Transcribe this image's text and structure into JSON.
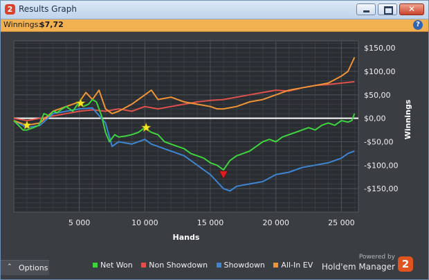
{
  "window": {
    "title": "Results Graph",
    "app_icon": "2",
    "close_glyph": "✕"
  },
  "infobar": {
    "winnings_label": "Winnings:",
    "winnings_value": "$7,72",
    "help_glyph": "?"
  },
  "chart_data": {
    "type": "line",
    "xlabel": "Hands",
    "ylabel": "Winnings",
    "xlim": [
      0,
      26300
    ],
    "ylim": [
      -200,
      165
    ],
    "x_ticks": [
      5000,
      10000,
      15000,
      20000,
      25000
    ],
    "x_tick_labels": [
      "5 000",
      "10 000",
      "15 000",
      "20 000",
      "25 000"
    ],
    "y_ticks": [
      150,
      100,
      50,
      0,
      -50,
      -100,
      -150
    ],
    "y_tick_labels": [
      "$150,00",
      "$100,00",
      "$50,00",
      "$0,00",
      "-$50,00",
      "-$100,00",
      "-$150,00"
    ],
    "grid": true,
    "legend_position": "bottom",
    "series": [
      {
        "name": "Net Won",
        "color": "#3ed43e",
        "x": [
          0,
          700,
          1000,
          1500,
          1900,
          2300,
          2700,
          3000,
          3300,
          3700,
          4000,
          4500,
          5000,
          5300,
          5700,
          6000,
          6300,
          6700,
          7000,
          7300,
          7700,
          8000,
          8500,
          9000,
          9500,
          10000,
          10500,
          11000,
          11500,
          12000,
          12500,
          13000,
          13500,
          14000,
          14500,
          15000,
          15500,
          16000,
          16500,
          17000,
          17500,
          18000,
          18500,
          19000,
          19500,
          20000,
          20500,
          21000,
          21500,
          22000,
          22500,
          23000,
          23500,
          24000,
          24500,
          25000,
          25500,
          25800,
          26000
        ],
        "y": [
          -5,
          -25,
          -25,
          -20,
          -15,
          10,
          5,
          15,
          12,
          20,
          25,
          15,
          35,
          25,
          30,
          40,
          35,
          5,
          -30,
          -50,
          -35,
          -40,
          -38,
          -35,
          -30,
          -20,
          -30,
          -35,
          -50,
          -55,
          -60,
          -65,
          -75,
          -80,
          -85,
          -95,
          -100,
          -110,
          -90,
          -80,
          -75,
          -70,
          -60,
          -50,
          -45,
          -50,
          -40,
          -35,
          -30,
          -25,
          -20,
          -25,
          -15,
          -10,
          -15,
          -5,
          -8,
          -5,
          10
        ]
      },
      {
        "name": "Non Showdown",
        "color": "#e0514b",
        "x": [
          0,
          1000,
          2000,
          3000,
          4000,
          5000,
          6000,
          7000,
          8000,
          9000,
          10000,
          11000,
          12000,
          13000,
          14000,
          15000,
          16000,
          17000,
          18000,
          19000,
          20000,
          21000,
          22000,
          23000,
          24000,
          25000,
          26000
        ],
        "y": [
          0,
          -5,
          0,
          5,
          10,
          15,
          18,
          15,
          20,
          15,
          25,
          20,
          25,
          30,
          35,
          38,
          40,
          45,
          50,
          55,
          60,
          58,
          65,
          70,
          72,
          75,
          78
        ]
      },
      {
        "name": "Showdown",
        "color": "#3d86d3",
        "x": [
          0,
          1000,
          2000,
          3000,
          4000,
          5000,
          6000,
          7000,
          7500,
          8000,
          9000,
          10000,
          10500,
          11000,
          12000,
          13000,
          14000,
          15000,
          15500,
          16000,
          16500,
          17000,
          18000,
          19000,
          20000,
          21000,
          22000,
          23000,
          24000,
          25000,
          25500,
          26000
        ],
        "y": [
          -5,
          -20,
          -15,
          10,
          15,
          20,
          22,
          -10,
          -60,
          -50,
          -55,
          -45,
          -55,
          -60,
          -70,
          -80,
          -100,
          -120,
          -135,
          -150,
          -155,
          -145,
          -140,
          -135,
          -120,
          -115,
          -105,
          -100,
          -95,
          -85,
          -75,
          -70
        ]
      },
      {
        "name": "All-In EV",
        "color": "#f09436",
        "x": [
          0,
          1000,
          2000,
          3000,
          4000,
          5000,
          5500,
          6000,
          6500,
          7000,
          7500,
          8000,
          9000,
          10000,
          10500,
          11000,
          12000,
          13000,
          14000,
          15000,
          15500,
          16000,
          17000,
          18000,
          19000,
          20000,
          21000,
          22000,
          23000,
          24000,
          25000,
          25500,
          26000
        ],
        "y": [
          -5,
          -15,
          -10,
          15,
          25,
          35,
          55,
          40,
          60,
          20,
          10,
          15,
          30,
          50,
          60,
          40,
          45,
          35,
          30,
          25,
          20,
          20,
          25,
          35,
          40,
          50,
          60,
          65,
          70,
          75,
          90,
          100,
          130
        ]
      }
    ],
    "markers": [
      {
        "type": "star",
        "color": "#f5e52a",
        "x": 1000,
        "y": -15
      },
      {
        "type": "star",
        "color": "#f5e52a",
        "x": 5100,
        "y": 32
      },
      {
        "type": "star",
        "color": "#f5e52a",
        "x": 10100,
        "y": -20
      },
      {
        "type": "triangle-down",
        "color": "#e21c1c",
        "x": 16000,
        "y": -120
      }
    ]
  },
  "options": {
    "label": "Options",
    "chevron": "⌃"
  },
  "legend": {
    "items": [
      {
        "label": "Net Won",
        "color": "#3ed43e"
      },
      {
        "label": "Non Showdown",
        "color": "#e0514b"
      },
      {
        "label": "Showdown",
        "color": "#3d86d3"
      },
      {
        "label": "All-In EV",
        "color": "#f09436"
      }
    ]
  },
  "brand": {
    "powered_by": "Powered by",
    "name": "Hold'em Manager",
    "logo_glyph": "2"
  }
}
